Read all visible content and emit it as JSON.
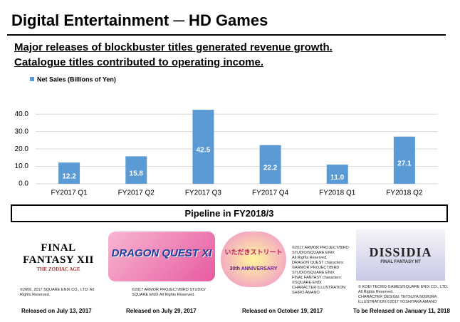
{
  "header": {
    "title": "Digital Entertainment ─ HD Games",
    "subtitles": [
      "Major releases of blockbuster titles generated revenue growth.",
      "Catalogue titles contributed to operating income."
    ]
  },
  "chart_data": {
    "type": "bar",
    "legend": "Net Sales (Billions of Yen)",
    "categories": [
      "FY2017 Q1",
      "FY2017 Q2",
      "FY2017 Q3",
      "FY2017 Q4",
      "FY2018 Q1",
      "FY2018 Q2"
    ],
    "values": [
      12.2,
      15.8,
      42.5,
      22.2,
      11.0,
      27.1
    ],
    "value_labels": [
      "12.2",
      "15.8",
      "42.5",
      "22.2",
      "11.0",
      "27.1"
    ],
    "color": "#5b9bd5",
    "ylim": [
      0,
      45
    ],
    "yticks": [
      {
        "value": 0,
        "label": "0.0"
      },
      {
        "value": 10,
        "label": "10.0"
      },
      {
        "value": 20,
        "label": "20.0"
      },
      {
        "value": 30,
        "label": "30.0"
      },
      {
        "value": 40,
        "label": "40.0"
      }
    ],
    "grid": true
  },
  "pipeline": {
    "title": "Pipeline in FY2018/3",
    "games": [
      {
        "logo": [
          "FINAL FANTASY XII",
          "THE ZODIAC AGE"
        ],
        "copyright": [
          "©2006, 2017 SQUARE ENIX CO., LTD. All",
          "Rights Reserved."
        ],
        "release": "Released on July 13, 2017"
      },
      {
        "logo": [
          "DRAGON QUEST XI"
        ],
        "copyright": [
          "©2017 ARMOR PROJECT/BIRD STUDIO/",
          "SQUARE ENIX All Rights Reserved."
        ],
        "release": "Released on July 29, 2017"
      },
      {
        "logo": [
          "いただきストリート",
          "30th ANNIVERSARY"
        ],
        "copyright": [
          "©2017 ARMOR PROJECT/BIRD",
          "STUDIO/SQUARE ENIX",
          "All Rights Reserved.",
          "DRAGON QUEST characters:",
          "©ARMOR PROJECT/BIRD",
          "STUDIO/SQUARE ENIX",
          "FINAL FANTASY characters:",
          "©SQUARE ENIX",
          "CHARACTER ILLUSTRATION:",
          "SHIRO AMANO"
        ],
        "release": "Released on October 19, 2017"
      },
      {
        "logo": [
          "DISSIDIA",
          "FINAL FANTASY NT"
        ],
        "copyright": [
          "© KOEI TECMO GAMES/SQUARE ENIX CO., LTD.",
          "All Rights Reserved.",
          "CHARACTER DESIGN: TETSUYA NOMURA",
          "ILLUSTRATION:©2017 YOSHITAKA AMANO"
        ],
        "release": "To be Released on January 11, 2018"
      }
    ]
  }
}
